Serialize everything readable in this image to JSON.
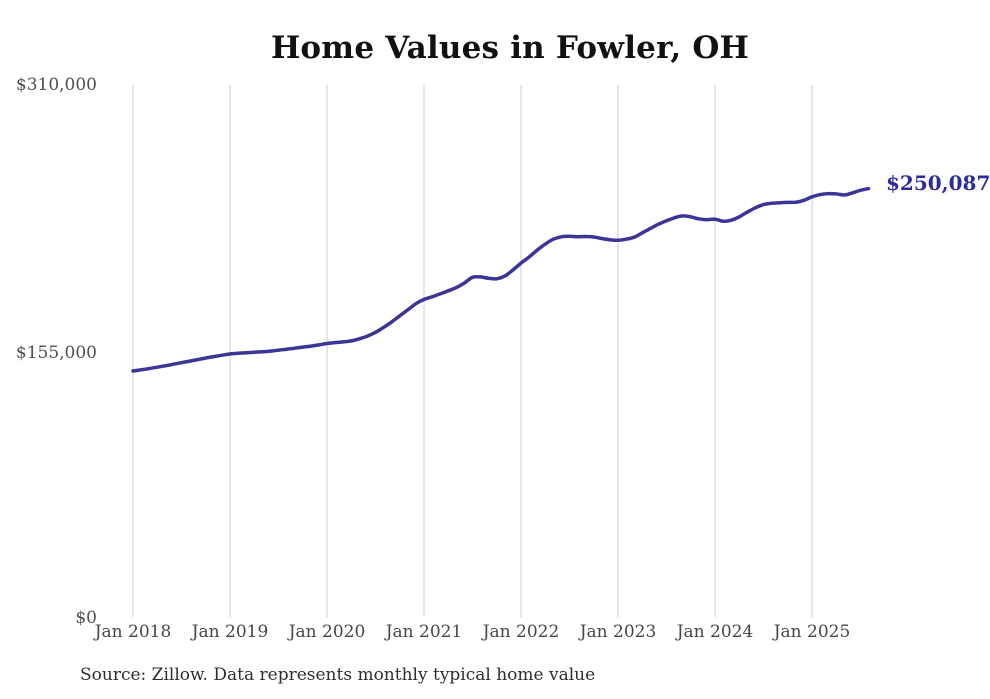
{
  "title": "Home Values in Fowler, OH",
  "end_value_label": "$250,087",
  "source_note": "Source: Zillow. Data represents monthly typical home value",
  "colors": {
    "line": "#3b3597",
    "end_label": "#2c2b9e",
    "gridline": "#cccccc",
    "axis_label": "#4f4f4f",
    "title": "#111111",
    "source": "#2e2e2e",
    "background": "#ffffff"
  },
  "y_axis": {
    "labels": [
      {
        "text": "$310,000",
        "value": 310000
      },
      {
        "text": "$155,000",
        "value": 155000
      },
      {
        "text": "$0",
        "value": 0
      }
    ]
  },
  "x_axis": {
    "tick_labels": [
      "Jan 2018",
      "Jan 2019",
      "Jan 2020",
      "Jan 2021",
      "Jan 2022",
      "Jan 2023",
      "Jan 2024",
      "Jan 2025"
    ]
  },
  "chart_data": {
    "type": "line",
    "title": "Home Values in Fowler, OH",
    "series_name": "Monthly typical home value",
    "source": "Zillow",
    "x_start_month": "2018-01",
    "x_end_month": "2025-08",
    "x_tick_labels": [
      "Jan 2018",
      "Jan 2019",
      "Jan 2020",
      "Jan 2021",
      "Jan 2022",
      "Jan 2023",
      "Jan 2024",
      "Jan 2025"
    ],
    "ylim": [
      0,
      310000
    ],
    "y_tick_values": [
      0,
      155000,
      310000
    ],
    "grid": "vertical-only",
    "legend": "none",
    "final_value": 250087,
    "values": [
      144600,
      145300,
      146000,
      146800,
      147600,
      148500,
      149400,
      150300,
      151200,
      152100,
      152900,
      153700,
      154400,
      154800,
      155100,
      155400,
      155700,
      156100,
      156600,
      157200,
      157800,
      158400,
      159000,
      159700,
      160500,
      161000,
      161400,
      162000,
      163200,
      164800,
      167000,
      169800,
      173000,
      176500,
      180000,
      183500,
      186000,
      187500,
      189200,
      191000,
      192800,
      195500,
      198800,
      199000,
      198200,
      197900,
      199500,
      203000,
      207000,
      210500,
      214500,
      218000,
      220800,
      222200,
      222500,
      222200,
      222400,
      222100,
      221200,
      220500,
      220200,
      220800,
      222000,
      224500,
      227000,
      229500,
      231500,
      233200,
      234300,
      233700,
      232600,
      232100,
      232400,
      231200,
      231800,
      233800,
      236500,
      239000,
      240800,
      241600,
      241900,
      242100,
      242200,
      243300,
      245300,
      246600,
      247200,
      247000,
      246400,
      247600,
      249100,
      250087
    ]
  }
}
